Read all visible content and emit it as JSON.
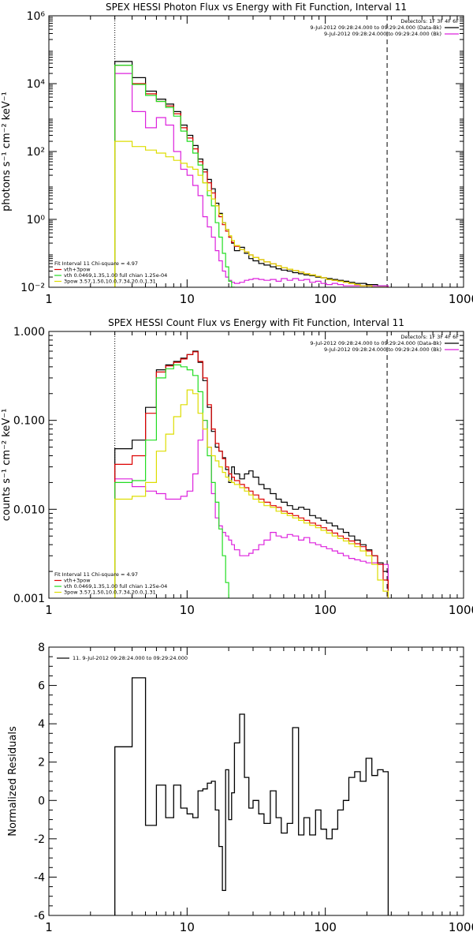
{
  "chart_data": [
    {
      "type": "line",
      "title": "SPEX HESSI Photon Flux vs Energy with Fit Function, Interval 11",
      "xlabel": "",
      "ylabel": "photons s⁻¹ cm⁻² keV⁻¹",
      "xlog": true,
      "ylog": true,
      "xlim": [
        1,
        1000
      ],
      "ylim": [
        0.01,
        1000000
      ],
      "x_ticks": [
        1,
        10,
        100,
        1000
      ],
      "x_tick_labels": [
        "1",
        "10",
        "100",
        "1000"
      ],
      "y_ticks": [
        0.01,
        1,
        100,
        10000,
        1000000
      ],
      "y_tick_labels": [
        "10⁻²",
        "10⁰",
        "10²",
        "10⁴",
        "10⁶"
      ],
      "vlines": [
        {
          "x": 3,
          "style": "dotted"
        },
        {
          "x": 280,
          "style": "dashed"
        }
      ],
      "legend_top": [
        "Detectors: 1F 3F 4F 6F",
        "9-Jul-2012 09:28:24.000 to 09:29:24.000 (Data-Bk)",
        "9-Jul-2012 09:28:24.000 to 09:29:24.000 (Bk)"
      ],
      "legend_bottom": [
        "Fit Interval 11   Chi-square = 4.97",
        "vth+3pow",
        "vth 0.0469,1.35,1.00  full chian 1.25e-04",
        "3pow 3.57,1.50,10.0,7.34,20.0,1.31"
      ],
      "bin_edges": [
        3,
        4,
        5,
        6,
        7,
        8,
        9,
        10,
        11,
        12,
        13,
        14,
        15,
        16,
        17,
        18,
        19,
        20,
        21,
        22,
        24,
        26,
        28,
        30,
        33,
        36,
        40,
        44,
        48,
        53,
        58,
        64,
        70,
        77,
        85,
        93,
        102,
        112,
        123,
        135,
        148,
        163,
        179,
        197,
        217,
        239,
        262,
        285
      ],
      "series": [
        {
          "name": "9-Jul-2012 09:28:24.000 to 09:29:24.000 (Data-Bk)",
          "color": "#000000",
          "values": [
            45000,
            15000,
            6000,
            3500,
            2500,
            1500,
            600,
            300,
            150,
            60,
            30,
            15,
            8,
            3,
            1.5,
            0.8,
            0.5,
            0.3,
            0.2,
            0.12,
            0.15,
            0.1,
            0.07,
            0.06,
            0.05,
            0.045,
            0.04,
            0.035,
            0.032,
            0.03,
            0.027,
            0.025,
            0.023,
            0.022,
            0.02,
            0.019,
            0.018,
            0.017,
            0.016,
            0.015,
            0.014,
            0.013,
            0.013,
            0.012,
            0.012,
            0.011,
            0.011
          ]
        },
        {
          "name": "9-Jul-2012 09:28:24.000 to 09:29:24.000 (Bk)",
          "color": "#dd22dd",
          "values": [
            20000,
            1500,
            500,
            1000,
            600,
            100,
            30,
            20,
            10,
            5,
            1.2,
            0.6,
            0.3,
            0.12,
            0.06,
            0.03,
            0.02,
            0.016,
            0.014,
            0.013,
            0.014,
            0.016,
            0.017,
            0.018,
            0.017,
            0.016,
            0.017,
            0.015,
            0.018,
            0.016,
            0.018,
            0.016,
            0.017,
            0.014,
            0.015,
            0.013,
            0.012,
            0.013,
            0.012,
            0.011,
            0.011,
            0.011,
            0.011,
            0.011,
            0.011,
            0.011,
            0.011
          ]
        },
        {
          "name": "vth+3pow",
          "color": "#dd0000",
          "values": [
            35000,
            10000,
            5000,
            3000,
            2200,
            1300,
            500,
            250,
            120,
            50,
            25,
            12,
            6,
            2.5,
            1.2,
            0.7,
            0.45,
            0.3,
            0.21,
            0.16,
            0.13,
            0.11,
            0.09,
            0.075,
            0.065,
            0.056,
            0.049,
            0.043,
            0.038,
            0.034,
            0.031,
            0.028,
            0.025,
            0.023,
            0.021,
            0.019,
            0.017,
            0.016,
            0.015,
            0.014,
            0.013,
            0.012,
            0.011,
            0.011,
            0.01,
            0.01,
            0.01
          ]
        },
        {
          "name": "vth 0.0469,1.35,1.00  full chian 1.25e-04",
          "color": "#22dd22",
          "values": [
            35000,
            9500,
            4500,
            3000,
            2000,
            1100,
            400,
            200,
            90,
            40,
            12,
            5,
            2.5,
            0.8,
            0.3,
            0.1,
            0.04,
            0.015,
            0.004
          ]
        },
        {
          "name": "3pow 3.57,1.50,10.0,7.34,20.0,1.31",
          "color": "#dddd00",
          "values": [
            200,
            140,
            110,
            90,
            70,
            55,
            45,
            35,
            30,
            20,
            12,
            7,
            4,
            2.5,
            1.4,
            0.8,
            0.5,
            0.33,
            0.24,
            0.17,
            0.13,
            0.11,
            0.09,
            0.075,
            0.065,
            0.056,
            0.049,
            0.043,
            0.038,
            0.034,
            0.031,
            0.028,
            0.025,
            0.023,
            0.021,
            0.019,
            0.017,
            0.016,
            0.015,
            0.014,
            0.013,
            0.012,
            0.011,
            0.011,
            0.01,
            0.01,
            0.01
          ]
        }
      ]
    },
    {
      "type": "line",
      "title": "SPEX HESSI Count Flux vs Energy with Fit Function, Interval 11",
      "xlabel": "",
      "ylabel": "counts s⁻¹ cm⁻² keV⁻¹",
      "xlog": true,
      "ylog": true,
      "xlim": [
        1,
        1000
      ],
      "ylim": [
        0.001,
        1.0
      ],
      "x_ticks": [
        1,
        10,
        100,
        1000
      ],
      "x_tick_labels": [
        "1",
        "10",
        "100",
        "1000"
      ],
      "y_ticks": [
        0.001,
        0.01,
        0.1,
        1.0
      ],
      "y_tick_labels": [
        "0.001",
        "0.010",
        "0.100",
        "1.000"
      ],
      "vlines": [
        {
          "x": 3,
          "style": "dotted"
        },
        {
          "x": 280,
          "style": "dashed"
        }
      ],
      "legend_top": [
        "Detectors: 1F 3F 4F 6F",
        "9-Jul-2012 09:28:24.000 to 09:29:24.000 (Data-Bk)",
        "9-Jul-2012 09:28:24.000 to 09:29:24.000 (Bk)"
      ],
      "legend_bottom": [
        "Fit Interval 11   Chi-square = 4.97",
        "vth+3pow",
        "vth 0.0469,1.35,1.00  full chian 1.25e-04",
        "3pow 3.57,1.50,10.0,7.34,20.0,1.31"
      ],
      "bin_edges": [
        3,
        4,
        5,
        6,
        7,
        8,
        9,
        10,
        11,
        12,
        13,
        14,
        15,
        16,
        17,
        18,
        19,
        20,
        21,
        22,
        24,
        26,
        28,
        30,
        33,
        36,
        40,
        44,
        48,
        53,
        58,
        64,
        70,
        77,
        85,
        93,
        102,
        112,
        123,
        135,
        148,
        163,
        179,
        197,
        217,
        239,
        262,
        285
      ],
      "series": [
        {
          "name": "9-Jul-2012 09:28:24.000 to 09:29:24.000 (Data-Bk)",
          "color": "#000000",
          "values": [
            0.048,
            0.06,
            0.14,
            0.37,
            0.42,
            0.46,
            0.5,
            0.55,
            0.6,
            0.45,
            0.28,
            0.14,
            0.075,
            0.05,
            0.045,
            0.038,
            0.028,
            0.02,
            0.03,
            0.025,
            0.022,
            0.025,
            0.027,
            0.023,
            0.019,
            0.017,
            0.015,
            0.013,
            0.012,
            0.011,
            0.01,
            0.0105,
            0.01,
            0.0085,
            0.008,
            0.0075,
            0.007,
            0.0065,
            0.006,
            0.0055,
            0.005,
            0.0045,
            0.004,
            0.0035,
            0.003,
            0.0025,
            0.002
          ]
        },
        {
          "name": "9-Jul-2012 09:28:24.000 to 09:29:24.000 (Bk)",
          "color": "#dd22dd",
          "values": [
            0.022,
            0.018,
            0.016,
            0.015,
            0.013,
            0.013,
            0.014,
            0.016,
            0.025,
            0.06,
            0.1,
            0.05,
            0.015,
            0.008,
            0.0065,
            0.0055,
            0.005,
            0.0045,
            0.004,
            0.0035,
            0.003,
            0.003,
            0.0032,
            0.0035,
            0.004,
            0.0045,
            0.0055,
            0.005,
            0.0048,
            0.0052,
            0.005,
            0.0045,
            0.0048,
            0.0042,
            0.004,
            0.0038,
            0.0036,
            0.0034,
            0.0032,
            0.003,
            0.0028,
            0.0027,
            0.0026,
            0.0025,
            0.0025,
            0.0024,
            0.0024
          ]
        },
        {
          "name": "vth+3pow",
          "color": "#dd0000",
          "values": [
            0.032,
            0.04,
            0.12,
            0.35,
            0.41,
            0.45,
            0.49,
            0.55,
            0.59,
            0.46,
            0.3,
            0.15,
            0.08,
            0.055,
            0.045,
            0.037,
            0.03,
            0.025,
            0.023,
            0.021,
            0.019,
            0.0175,
            0.016,
            0.0145,
            0.013,
            0.012,
            0.011,
            0.0105,
            0.0095,
            0.009,
            0.0085,
            0.008,
            0.0075,
            0.007,
            0.0066,
            0.0062,
            0.0058,
            0.0054,
            0.005,
            0.0047,
            0.0044,
            0.0041,
            0.0038,
            0.0034,
            0.003,
            0.0024,
            0.0016
          ]
        },
        {
          "name": "vth 0.0469,1.35,1.00  full chian 1.25e-04",
          "color": "#22dd22",
          "values": [
            0.02,
            0.021,
            0.06,
            0.3,
            0.38,
            0.42,
            0.4,
            0.37,
            0.32,
            0.21,
            0.1,
            0.04,
            0.02,
            0.012,
            0.006,
            0.003,
            0.0015
          ]
        },
        {
          "name": "3pow 3.57,1.50,10.0,7.34,20.0,1.31",
          "color": "#dddd00",
          "values": [
            0.013,
            0.014,
            0.02,
            0.045,
            0.07,
            0.11,
            0.15,
            0.22,
            0.2,
            0.12,
            0.08,
            0.05,
            0.04,
            0.035,
            0.03,
            0.026,
            0.023,
            0.021,
            0.02,
            0.019,
            0.0175,
            0.016,
            0.0145,
            0.013,
            0.012,
            0.011,
            0.0105,
            0.0095,
            0.009,
            0.0085,
            0.008,
            0.0075,
            0.007,
            0.0066,
            0.0062,
            0.0058,
            0.0054,
            0.005,
            0.0047,
            0.0044,
            0.0041,
            0.0038,
            0.0034,
            0.003,
            0.0024,
            0.0016,
            0.0012
          ]
        }
      ]
    },
    {
      "type": "line",
      "title": "",
      "xlabel": "",
      "ylabel": "Normalized Residuals",
      "xlog": true,
      "ylog": false,
      "xlim": [
        1,
        1000
      ],
      "ylim": [
        -6,
        8
      ],
      "x_ticks": [
        1,
        10,
        100,
        1000
      ],
      "x_tick_labels": [
        "1",
        "10",
        "100",
        "1000"
      ],
      "y_ticks": [
        -6,
        -4,
        -2,
        0,
        2,
        4,
        6,
        8
      ],
      "y_tick_labels": [
        "-6",
        "-4",
        "-2",
        "0",
        "2",
        "4",
        "6",
        "8"
      ],
      "legend_top": [
        "11.  9-Jul-2012 09:28:24.000 to 09:29:24.000"
      ],
      "bin_edges": [
        3,
        4,
        5,
        6,
        7,
        8,
        9,
        10,
        11,
        12,
        13,
        14,
        15,
        16,
        17,
        18,
        19,
        20,
        21,
        22,
        24,
        26,
        28,
        30,
        33,
        36,
        40,
        44,
        48,
        53,
        58,
        64,
        70,
        77,
        85,
        93,
        102,
        112,
        123,
        135,
        148,
        163,
        179,
        197,
        217,
        239,
        262,
        285
      ],
      "series": [
        {
          "name": "11.  9-Jul-2012 09:28:24.000 to 09:29:24.000",
          "color": "#000000",
          "values": [
            2.8,
            6.4,
            -1.3,
            0.8,
            -0.9,
            0.8,
            -0.4,
            -0.7,
            -0.9,
            0.5,
            0.6,
            0.9,
            1.0,
            -0.5,
            -2.4,
            -4.7,
            1.6,
            -1.0,
            0.4,
            3.0,
            4.5,
            1.2,
            -0.4,
            0.0,
            -0.7,
            -1.2,
            0.5,
            -0.9,
            -1.7,
            -1.2,
            3.8,
            -1.8,
            -0.9,
            -1.8,
            -0.5,
            -1.5,
            -2.0,
            -1.5,
            -0.5,
            0.0,
            1.2,
            1.5,
            1.0,
            2.2,
            1.3,
            1.6,
            1.5
          ]
        }
      ]
    }
  ]
}
